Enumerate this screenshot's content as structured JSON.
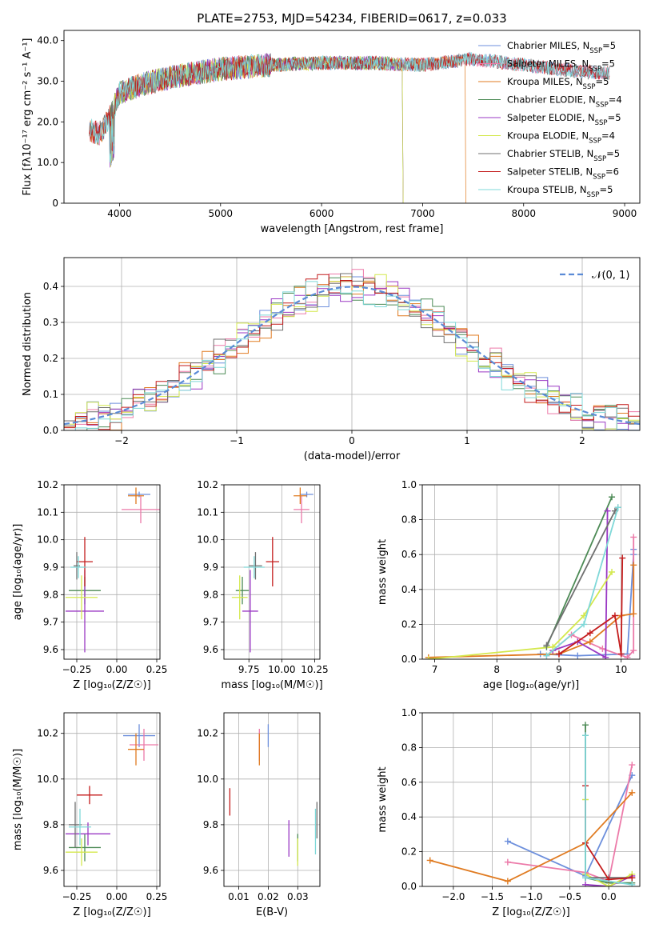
{
  "title": "PLATE=2753, MJD=54234, FIBERID=0617, z=0.033",
  "colors": {
    "Chabrier MILES": "#6d8fdc",
    "Salpeter MILES": "#ec7aa9",
    "Kroupa MILES": "#e07b21",
    "Chabrier ELODIE": "#4c8a55",
    "Salpeter ELODIE": "#9a38c4",
    "Kroupa ELODIE": "#d4e84d",
    "Chabrier STELIB": "#707070",
    "Salpeter STELIB": "#c41c1c",
    "Kroupa STELIB": "#7fd8d8",
    "normal": "#5b8bd6"
  },
  "chart_data": [
    {
      "id": "spectrum",
      "type": "line",
      "xlabel": "wavelength [Angstrom, rest frame]",
      "ylabel": "Flux [fλ10⁻¹⁷ erg cm⁻² s⁻¹ A⁻¹]",
      "xlim": [
        3450,
        9150
      ],
      "ylim": [
        0,
        42.5
      ],
      "xticks": [
        4000,
        5000,
        6000,
        7000,
        8000,
        9000
      ],
      "yticks": [
        0,
        10,
        20,
        30,
        40
      ],
      "legend_position": "upper right",
      "continuum": {
        "x": [
          3700,
          3800,
          3900,
          4000,
          4200,
          4500,
          5000,
          5500,
          6000,
          6500,
          7000,
          7500,
          8000,
          8500,
          8800
        ],
        "y": [
          18,
          17,
          21,
          27,
          29,
          31,
          33,
          34,
          34.5,
          34.5,
          34,
          35.5,
          34,
          32.5,
          32
        ]
      },
      "series": [
        {
          "name": "Chabrier MILES",
          "legend": "Chabrier MILES, N_SSP=5",
          "end": 8850
        },
        {
          "name": "Salpeter MILES",
          "legend": "Salpeter MILES, N_SSP=5",
          "end": 8850
        },
        {
          "name": "Kroupa MILES",
          "legend": "Kroupa MILES, N_SSP=5",
          "end": 7420
        },
        {
          "name": "Chabrier ELODIE",
          "legend": "Chabrier ELODIE, N_SSP=4",
          "end": 6800,
          "start": 3900
        },
        {
          "name": "Salpeter ELODIE",
          "legend": "Salpeter ELODIE, N_SSP=5",
          "end": 6800,
          "start": 3900
        },
        {
          "name": "Kroupa ELODIE",
          "legend": "Kroupa ELODIE, N_SSP=4",
          "end": 6800,
          "start": 3900
        },
        {
          "name": "Chabrier STELIB",
          "legend": "Chabrier STELIB, N_SSP=5",
          "end": 8850
        },
        {
          "name": "Salpeter STELIB",
          "legend": "Salpeter STELIB, N_SSP=6",
          "end": 8850
        },
        {
          "name": "Kroupa STELIB",
          "legend": "Kroupa STELIB, N_SSP=5",
          "end": 8850
        }
      ]
    },
    {
      "id": "residuals",
      "type": "line",
      "xlabel": "(data-model)/error",
      "ylabel": "Normed distribution",
      "xlim": [
        -2.5,
        2.5
      ],
      "ylim": [
        0,
        0.48
      ],
      "xticks": [
        -2,
        -1,
        0,
        1,
        2
      ],
      "yticks": [
        0,
        0.1,
        0.2,
        0.3,
        0.4
      ],
      "legend_position": "upper right",
      "normal_label": "𝒩(0, 1)",
      "bin_width": 0.1,
      "series": [
        {
          "name": "Chabrier MILES",
          "phase": 0.0
        },
        {
          "name": "Salpeter MILES",
          "phase": 1.3
        },
        {
          "name": "Kroupa MILES",
          "phase": 2.6
        },
        {
          "name": "Chabrier ELODIE",
          "phase": 3.9
        },
        {
          "name": "Salpeter ELODIE",
          "phase": 5.2
        },
        {
          "name": "Kroupa ELODIE",
          "phase": 6.5
        },
        {
          "name": "Chabrier STELIB",
          "phase": 7.8
        },
        {
          "name": "Salpeter STELIB",
          "phase": 9.1
        },
        {
          "name": "Kroupa STELIB",
          "phase": 10.4
        }
      ]
    },
    {
      "id": "age_vs_Z",
      "type": "scatter",
      "xlabel": "Z [log₁₀(Z/Z☉)]",
      "ylabel": "age  [log₁₀(age/yr)]",
      "xlim": [
        -0.33,
        0.27
      ],
      "ylim": [
        9.565,
        10.2
      ],
      "xticks": [
        -0.25,
        0.0,
        0.25
      ],
      "xticklabels": [
        "−0.25",
        "0.00",
        "0.25"
      ],
      "yticks": [
        9.6,
        9.7,
        9.8,
        9.9,
        10.0,
        10.1,
        10.2
      ],
      "points": [
        {
          "name": "Chabrier MILES",
          "x": 0.14,
          "xerr": 0.07,
          "y": 10.165,
          "yerr": 0.01
        },
        {
          "name": "Salpeter MILES",
          "x": 0.15,
          "xerr": 0.12,
          "y": 10.11,
          "yerr": 0.05
        },
        {
          "name": "Kroupa MILES",
          "x": 0.12,
          "xerr": 0.05,
          "y": 10.16,
          "yerr": 0.03
        },
        {
          "name": "Chabrier ELODIE",
          "x": -0.2,
          "xerr": 0.1,
          "y": 9.815,
          "yerr": 0.05
        },
        {
          "name": "Salpeter ELODIE",
          "x": -0.2,
          "xerr": 0.12,
          "y": 9.74,
          "yerr": 0.15
        },
        {
          "name": "Kroupa ELODIE",
          "x": -0.22,
          "xerr": 0.1,
          "y": 9.79,
          "yerr": 0.08
        },
        {
          "name": "Chabrier STELIB",
          "x": -0.25,
          "xerr": 0.02,
          "y": 9.905,
          "yerr": 0.05
        },
        {
          "name": "Salpeter STELIB",
          "x": -0.2,
          "xerr": 0.05,
          "y": 9.92,
          "yerr": 0.09
        },
        {
          "name": "Kroupa STELIB",
          "x": -0.24,
          "xerr": 0.05,
          "y": 9.9,
          "yerr": 0.04
        }
      ]
    },
    {
      "id": "age_vs_mass",
      "type": "scatter",
      "xlabel": "mass [log₁₀(M/M☉)]",
      "ylabel": "",
      "xlim": [
        9.56,
        10.29
      ],
      "ylim": [
        9.565,
        10.2
      ],
      "xticks": [
        9.75,
        10.0,
        10.25
      ],
      "xticklabels": [
        "9.75",
        "10.00",
        "10.25"
      ],
      "yticks": [
        9.6,
        9.7,
        9.8,
        9.9,
        10.0,
        10.1,
        10.2
      ],
      "points": [
        {
          "name": "Chabrier MILES",
          "x": 10.19,
          "xerr": 0.05,
          "y": 10.165,
          "yerr": 0.01
        },
        {
          "name": "Salpeter MILES",
          "x": 10.15,
          "xerr": 0.06,
          "y": 10.11,
          "yerr": 0.05
        },
        {
          "name": "Kroupa MILES",
          "x": 10.14,
          "xerr": 0.05,
          "y": 10.16,
          "yerr": 0.03
        },
        {
          "name": "Chabrier ELODIE",
          "x": 9.7,
          "xerr": 0.05,
          "y": 9.815,
          "yerr": 0.05
        },
        {
          "name": "Salpeter ELODIE",
          "x": 9.76,
          "xerr": 0.06,
          "y": 9.74,
          "yerr": 0.15
        },
        {
          "name": "Kroupa ELODIE",
          "x": 9.68,
          "xerr": 0.06,
          "y": 9.79,
          "yerr": 0.08
        },
        {
          "name": "Chabrier STELIB",
          "x": 9.8,
          "xerr": 0.05,
          "y": 9.905,
          "yerr": 0.05
        },
        {
          "name": "Salpeter STELIB",
          "x": 9.93,
          "xerr": 0.05,
          "y": 9.92,
          "yerr": 0.09
        },
        {
          "name": "Kroupa STELIB",
          "x": 9.79,
          "xerr": 0.08,
          "y": 9.9,
          "yerr": 0.04
        }
      ]
    },
    {
      "id": "weight_vs_age",
      "type": "line",
      "xlabel": "age  [log₁₀(age/yr)]",
      "ylabel": "mass weight",
      "xlim": [
        6.8,
        10.3
      ],
      "ylim": [
        0,
        1.0
      ],
      "xticks": [
        7,
        8,
        9,
        10
      ],
      "yticks": [
        0,
        0.2,
        0.4,
        0.6,
        0.8,
        1.0
      ],
      "yticklabels": [
        "0.0",
        "0.2",
        "0.4",
        "0.6",
        "0.8",
        "1.0"
      ],
      "series": [
        {
          "name": "Chabrier MILES",
          "x": [
            8.7,
            9.3,
            10.1,
            10.2,
            10.2
          ],
          "y": [
            0.03,
            0.02,
            0.03,
            0.6,
            0.63
          ]
        },
        {
          "name": "Salpeter MILES",
          "x": [
            8.8,
            9.2,
            9.7,
            10.1,
            10.2,
            10.2
          ],
          "y": [
            0.02,
            0.14,
            0.06,
            0.01,
            0.05,
            0.7
          ]
        },
        {
          "name": "Kroupa MILES",
          "x": [
            6.9,
            9.0,
            9.5,
            10.0,
            10.2,
            10.2
          ],
          "y": [
            0.01,
            0.03,
            0.1,
            0.25,
            0.26,
            0.54
          ]
        },
        {
          "name": "Chabrier ELODIE",
          "x": [
            8.8,
            9.85
          ],
          "y": [
            0.07,
            0.93
          ]
        },
        {
          "name": "Salpeter ELODIE",
          "x": [
            8.9,
            9.3,
            9.75,
            9.78
          ],
          "y": [
            0.05,
            0.1,
            0.01,
            0.85
          ]
        },
        {
          "name": "Kroupa ELODIE",
          "x": [
            6.9,
            8.9,
            9.4,
            9.85
          ],
          "y": [
            0.0,
            0.07,
            0.25,
            0.5
          ]
        },
        {
          "name": "Chabrier STELIB",
          "x": [
            8.8,
            9.9,
            9.95
          ],
          "y": [
            0.08,
            0.85,
            0.87
          ]
        },
        {
          "name": "Salpeter STELIB",
          "x": [
            9.0,
            9.5,
            9.9,
            10.0,
            10.02
          ],
          "y": [
            0.03,
            0.15,
            0.25,
            0.03,
            0.58
          ]
        },
        {
          "name": "Kroupa STELIB",
          "x": [
            8.8,
            9.4,
            9.95
          ],
          "y": [
            0.02,
            0.2,
            0.87
          ]
        }
      ]
    },
    {
      "id": "mass_vs_Z",
      "type": "scatter",
      "xlabel": "Z [log₁₀(Z/Z☉)]",
      "ylabel": "mass [log₁₀(M/M☉)]",
      "xlim": [
        -0.33,
        0.27
      ],
      "ylim": [
        9.53,
        10.29
      ],
      "xticks": [
        -0.25,
        0.0,
        0.25
      ],
      "xticklabels": [
        "−0.25",
        "0.00",
        "0.25"
      ],
      "yticks": [
        9.6,
        9.8,
        10.0,
        10.2
      ],
      "points": [
        {
          "name": "Chabrier MILES",
          "x": 0.14,
          "xerr": 0.1,
          "y": 10.19,
          "yerr": 0.05
        },
        {
          "name": "Salpeter MILES",
          "x": 0.17,
          "xerr": 0.09,
          "y": 10.15,
          "yerr": 0.07
        },
        {
          "name": "Kroupa MILES",
          "x": 0.12,
          "xerr": 0.05,
          "y": 10.13,
          "yerr": 0.07
        },
        {
          "name": "Chabrier ELODIE",
          "x": -0.2,
          "xerr": 0.1,
          "y": 9.7,
          "yerr": 0.06
        },
        {
          "name": "Salpeter ELODIE",
          "x": -0.18,
          "xerr": 0.14,
          "y": 9.76,
          "yerr": 0.05
        },
        {
          "name": "Kroupa ELODIE",
          "x": -0.22,
          "xerr": 0.1,
          "y": 9.68,
          "yerr": 0.06
        },
        {
          "name": "Chabrier STELIB",
          "x": -0.26,
          "xerr": 0.04,
          "y": 9.8,
          "yerr": 0.1
        },
        {
          "name": "Salpeter STELIB",
          "x": -0.17,
          "xerr": 0.08,
          "y": 9.93,
          "yerr": 0.04
        },
        {
          "name": "Kroupa STELIB",
          "x": -0.23,
          "xerr": 0.07,
          "y": 9.79,
          "yerr": 0.08
        }
      ]
    },
    {
      "id": "mass_vs_ebv",
      "type": "scatter",
      "xlabel": "E(B-V)",
      "ylabel": "",
      "xlim": [
        0.005,
        0.0375
      ],
      "ylim": [
        9.53,
        10.29
      ],
      "xticks": [
        0.01,
        0.02,
        0.03
      ],
      "xticklabels": [
        "0.01",
        "0.02",
        "0.03"
      ],
      "yticks": [
        9.6,
        9.8,
        10.0,
        10.2
      ],
      "points": [
        {
          "name": "Chabrier MILES",
          "x": 0.02,
          "y": 10.19,
          "yerr": 0.05
        },
        {
          "name": "Salpeter MILES",
          "x": 0.017,
          "y": 10.15,
          "yerr": 0.07
        },
        {
          "name": "Kroupa MILES",
          "x": 0.017,
          "y": 10.13,
          "yerr": 0.07
        },
        {
          "name": "Chabrier ELODIE",
          "x": 0.03,
          "y": 9.7,
          "yerr": 0.06
        },
        {
          "name": "Salpeter ELODIE",
          "x": 0.027,
          "y": 9.74,
          "yerr": 0.08
        },
        {
          "name": "Kroupa ELODIE",
          "x": 0.03,
          "y": 9.68,
          "yerr": 0.06
        },
        {
          "name": "Chabrier STELIB",
          "x": 0.0365,
          "y": 9.82,
          "yerr": 0.08
        },
        {
          "name": "Salpeter STELIB",
          "x": 0.007,
          "y": 9.9,
          "yerr": 0.06
        },
        {
          "name": "Kroupa STELIB",
          "x": 0.036,
          "y": 9.77,
          "yerr": 0.1
        }
      ]
    },
    {
      "id": "weight_vs_Z",
      "type": "line",
      "xlabel": "Z [log₁₀(Z/Z☉)]",
      "ylabel": "mass weight",
      "xlim": [
        -2.4,
        0.4
      ],
      "ylim": [
        0,
        1.0
      ],
      "xticks": [
        -2.0,
        -1.5,
        -1.0,
        -0.5,
        0.0
      ],
      "xticklabels": [
        "−2.0",
        "−1.5",
        "−1.0",
        "−0.5",
        "0.0"
      ],
      "yticks": [
        0,
        0.2,
        0.4,
        0.6,
        0.8,
        1.0
      ],
      "yticklabels": [
        "0.0",
        "0.2",
        "0.4",
        "0.6",
        "0.8",
        "1.0"
      ],
      "series": [
        {
          "name": "Chabrier MILES",
          "x": [
            -1.3,
            -0.3,
            0.3
          ],
          "y": [
            0.26,
            0.06,
            0.64
          ]
        },
        {
          "name": "Salpeter MILES",
          "x": [
            -1.3,
            -0.3,
            0.0,
            0.3
          ],
          "y": [
            0.14,
            0.08,
            0.03,
            0.7
          ]
        },
        {
          "name": "Kroupa MILES",
          "x": [
            -2.3,
            -1.3,
            -0.3,
            0.3
          ],
          "y": [
            0.15,
            0.03,
            0.25,
            0.54
          ]
        },
        {
          "name": "Chabrier ELODIE",
          "x": [
            -0.3,
            -0.3,
            0.0,
            0.3
          ],
          "y": [
            0.93,
            0.05,
            0.02,
            0.02
          ]
        },
        {
          "name": "Salpeter ELODIE",
          "x": [
            -0.3,
            0.0,
            0.3
          ],
          "y": [
            0.01,
            0.0,
            0.06
          ]
        },
        {
          "name": "Kroupa ELODIE",
          "x": [
            -0.3,
            -0.3,
            0.0,
            0.3
          ],
          "y": [
            0.5,
            0.07,
            0.0,
            0.07
          ]
        },
        {
          "name": "Chabrier STELIB",
          "x": [
            -0.3,
            -0.3,
            0.0,
            0.3
          ],
          "y": [
            0.87,
            0.05,
            0.05,
            0.05
          ]
        },
        {
          "name": "Salpeter STELIB",
          "x": [
            -0.3,
            -0.3,
            0.0,
            0.3
          ],
          "y": [
            0.58,
            0.25,
            0.04,
            0.05
          ]
        },
        {
          "name": "Kroupa STELIB",
          "x": [
            -0.3,
            -0.3,
            0.3
          ],
          "y": [
            0.87,
            0.05,
            0.01
          ]
        }
      ]
    }
  ]
}
